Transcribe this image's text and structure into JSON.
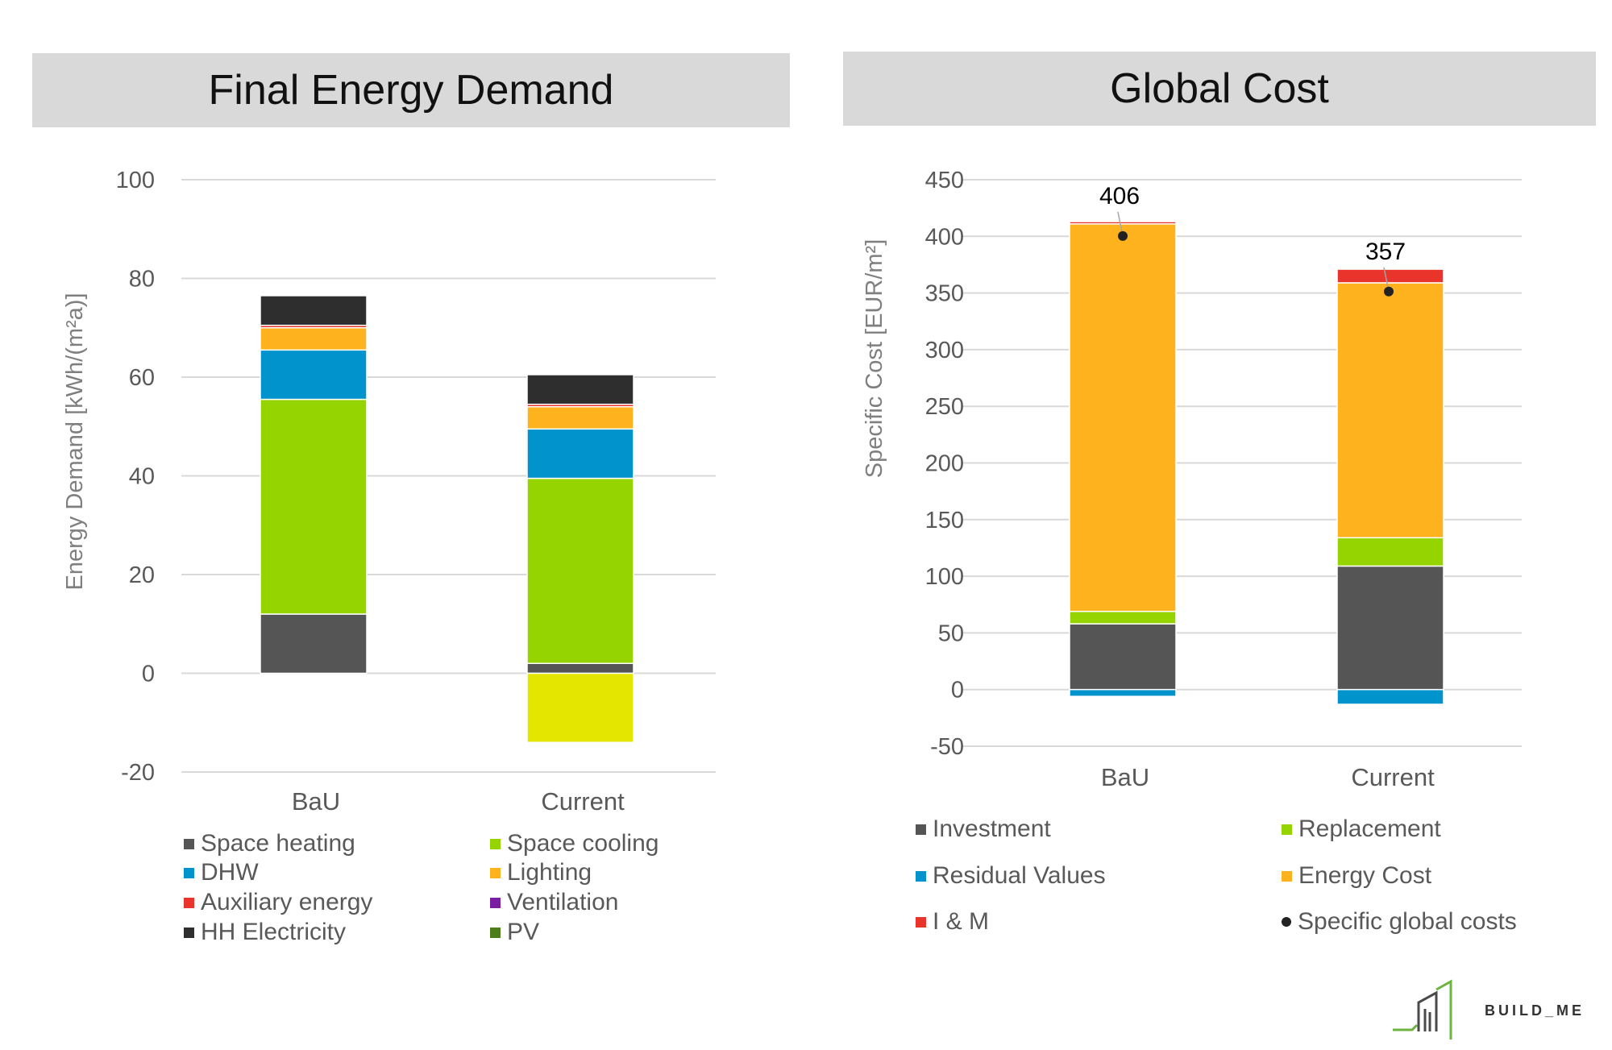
{
  "headers": {
    "left": "Final Energy Demand",
    "right": "Global Cost"
  },
  "chart_data": [
    {
      "type": "bar",
      "stacked": true,
      "categories": [
        "BaU",
        "Current"
      ],
      "ylabel": "Energy Demand [kWh/(m²a)]",
      "ylim": [
        -20,
        100
      ],
      "yticks": [
        -20,
        0,
        20,
        40,
        60,
        80,
        100
      ],
      "grid": true,
      "legend_position": "bottom",
      "series": [
        {
          "name": "Space heating",
          "color": "#555555",
          "values": [
            12,
            2
          ]
        },
        {
          "name": "Space cooling",
          "color": "#96d400",
          "values": [
            43.5,
            37.5
          ]
        },
        {
          "name": "DHW",
          "color": "#0093cc",
          "values": [
            10,
            10
          ]
        },
        {
          "name": "Lighting",
          "color": "#fdb21e",
          "values": [
            4.5,
            4.5
          ]
        },
        {
          "name": "Auxiliary energy",
          "color": "#e8342a",
          "values": [
            0.5,
            0.5
          ]
        },
        {
          "name": "Ventilation",
          "color": "#7a1fa2",
          "values": [
            0,
            0
          ]
        },
        {
          "name": "HH Electricity",
          "color": "#2e2e2e",
          "values": [
            6,
            6
          ]
        },
        {
          "name": "PV",
          "color": "#e5e600",
          "legend_color": "#4e7d1b",
          "values": [
            0,
            -14
          ]
        }
      ]
    },
    {
      "type": "bar",
      "stacked": true,
      "categories": [
        "BaU",
        "Current"
      ],
      "ylabel": "Specific Cost [EUR/m²]",
      "ylim": [
        -50,
        450
      ],
      "yticks": [
        -50,
        0,
        50,
        100,
        150,
        200,
        250,
        300,
        350,
        400,
        450
      ],
      "grid": true,
      "legend_position": "bottom",
      "series": [
        {
          "name": "Investment",
          "color": "#555555",
          "values": [
            58,
            109
          ]
        },
        {
          "name": "Replacement",
          "color": "#96d400",
          "values": [
            11,
            25
          ]
        },
        {
          "name": "Residual Values",
          "color": "#0093cc",
          "values": [
            -6,
            -13
          ]
        },
        {
          "name": "Energy Cost",
          "color": "#fdb21e",
          "values": [
            342,
            225
          ]
        },
        {
          "name": "I & M",
          "color": "#e8342a",
          "values": [
            2,
            12
          ]
        }
      ],
      "markers": {
        "name": "Specific global costs",
        "color": "#222222",
        "values": [
          406,
          357
        ],
        "labels": [
          "406",
          "357"
        ]
      }
    }
  ],
  "logo": {
    "text": "BUILD_ME"
  }
}
